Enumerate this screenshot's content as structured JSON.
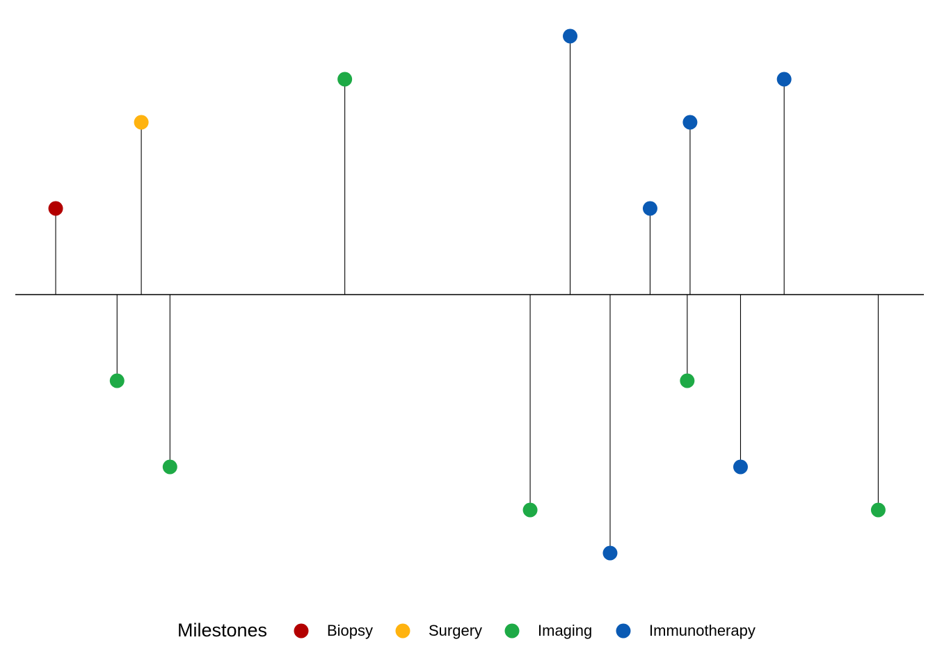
{
  "chart_data": {
    "type": "scatter",
    "subtype": "lollipop-timeline",
    "title": "",
    "xlabel": "",
    "ylabel": "",
    "grid": false,
    "axes_visible": false,
    "baseline": 0,
    "ylim": [
      -3,
      3
    ],
    "legend": {
      "title": "Milestones",
      "position": "bottom"
    },
    "series": [
      {
        "name": "Biopsy",
        "color": "#B30000",
        "points": [
          {
            "x": 1,
            "y": 1
          }
        ]
      },
      {
        "name": "Surgery",
        "color": "#FFB30F",
        "points": [
          {
            "x": 3.12,
            "y": 2
          }
        ]
      },
      {
        "name": "Imaging",
        "color": "#1EAA46",
        "points": [
          {
            "x": 2.52,
            "y": -1
          },
          {
            "x": 3.83,
            "y": -2
          },
          {
            "x": 8.16,
            "y": 2.5
          },
          {
            "x": 12.75,
            "y": -2.5
          },
          {
            "x": 16.64,
            "y": -1
          },
          {
            "x": 21.37,
            "y": -2.5
          }
        ]
      },
      {
        "name": "Immunotherapy",
        "color": "#0A5AB4",
        "points": [
          {
            "x": 13.74,
            "y": 3
          },
          {
            "x": 14.73,
            "y": -3
          },
          {
            "x": 15.72,
            "y": 1
          },
          {
            "x": 16.71,
            "y": 2
          },
          {
            "x": 17.96,
            "y": -2
          },
          {
            "x": 19.04,
            "y": 2.5
          }
        ]
      }
    ]
  }
}
